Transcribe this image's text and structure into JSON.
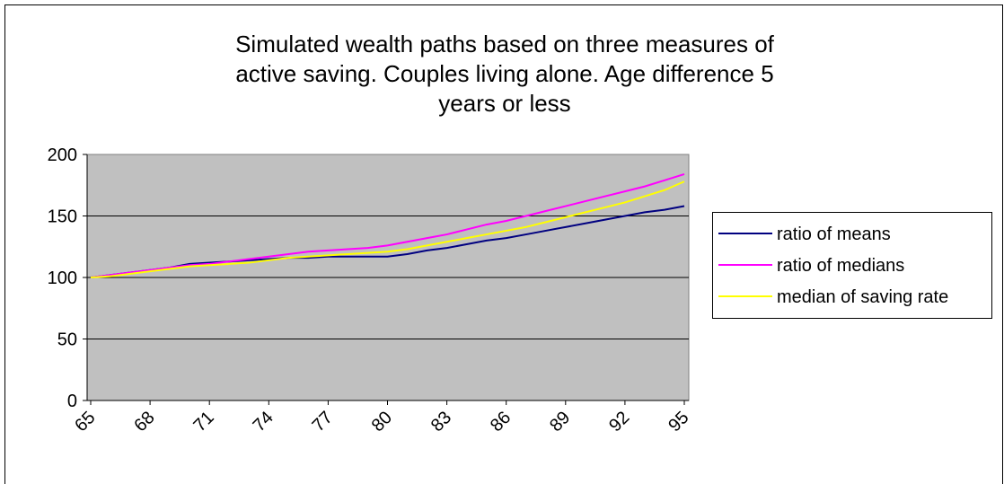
{
  "chart_data": {
    "type": "line",
    "title": [
      "Simulated wealth paths based on three measures of",
      "active saving.  Couples living alone.  Age difference 5",
      "years or less"
    ],
    "x": [
      65,
      66,
      67,
      68,
      69,
      70,
      71,
      72,
      73,
      74,
      75,
      76,
      77,
      78,
      79,
      80,
      81,
      82,
      83,
      84,
      85,
      86,
      87,
      88,
      89,
      90,
      91,
      92,
      93,
      94,
      95
    ],
    "xlim": [
      65,
      95
    ],
    "xticks": [
      65,
      68,
      71,
      74,
      77,
      80,
      83,
      86,
      89,
      92,
      95
    ],
    "ylim": [
      0,
      200
    ],
    "yticks": [
      0,
      50,
      100,
      150,
      200
    ],
    "grid": true,
    "legend": "right",
    "series": [
      {
        "name": "ratio of means",
        "color": "#000080",
        "values": [
          100,
          102,
          104,
          106,
          108,
          111,
          112,
          113,
          114,
          115,
          116,
          116,
          117,
          117,
          117,
          117,
          119,
          122,
          124,
          127,
          130,
          132,
          135,
          138,
          141,
          144,
          147,
          150,
          153,
          155,
          158
        ]
      },
      {
        "name": "ratio of medians",
        "color": "#ff00ff",
        "values": [
          100,
          102,
          104,
          106,
          108,
          110,
          111,
          113,
          115,
          117,
          119,
          121,
          122,
          123,
          124,
          126,
          129,
          132,
          135,
          139,
          143,
          146,
          150,
          154,
          158,
          162,
          166,
          170,
          174,
          179,
          184
        ]
      },
      {
        "name": "median of saving rate",
        "color": "#ffff00",
        "values": [
          100,
          101,
          103,
          105,
          107,
          109,
          110,
          111,
          112,
          114,
          116,
          117,
          118,
          119,
          120,
          121,
          123,
          126,
          129,
          132,
          135,
          138,
          141,
          145,
          149,
          153,
          157,
          161,
          166,
          171,
          178
        ]
      }
    ]
  }
}
